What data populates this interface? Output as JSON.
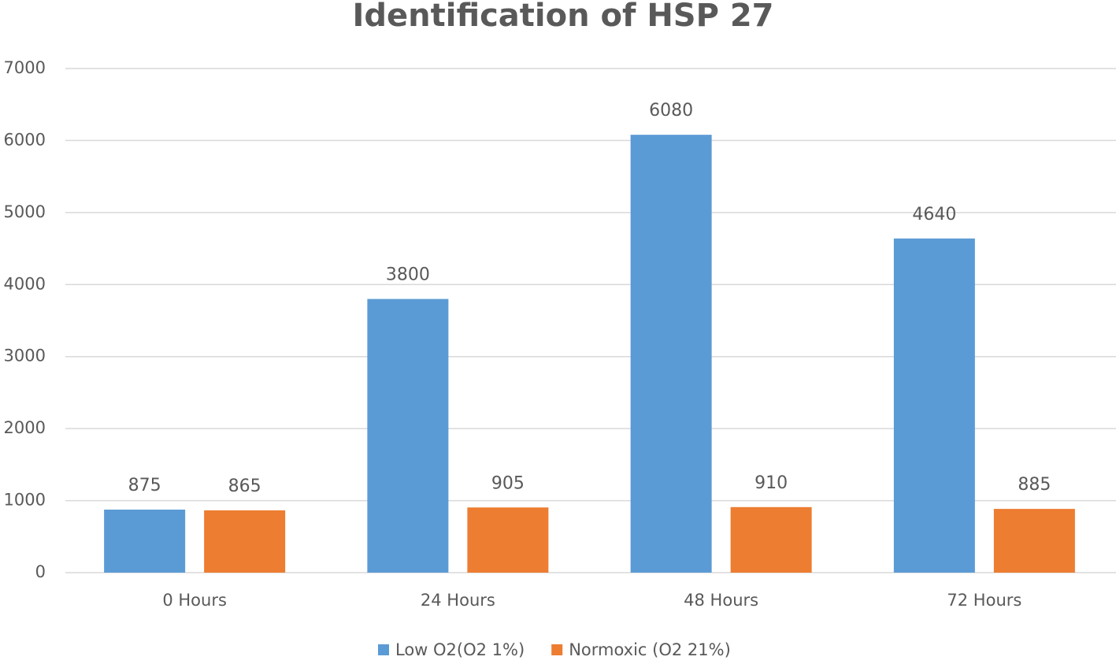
{
  "chart_data": {
    "type": "bar",
    "title": "Identification of HSP 27",
    "categories": [
      "0 Hours",
      "24 Hours",
      "48 Hours",
      "72 Hours"
    ],
    "series": [
      {
        "name": "Low O2(O2 1%)",
        "color": "#5b9bd5",
        "values": [
          875,
          3800,
          6080,
          4640
        ]
      },
      {
        "name": "Normoxic (O2 21%)",
        "color": "#ed7d31",
        "values": [
          865,
          905,
          910,
          885
        ]
      }
    ],
    "ylim": [
      0,
      7000
    ],
    "yticks": [
      0,
      1000,
      2000,
      3000,
      4000,
      5000,
      6000,
      7000
    ],
    "grid": true,
    "legend": "bottom"
  }
}
